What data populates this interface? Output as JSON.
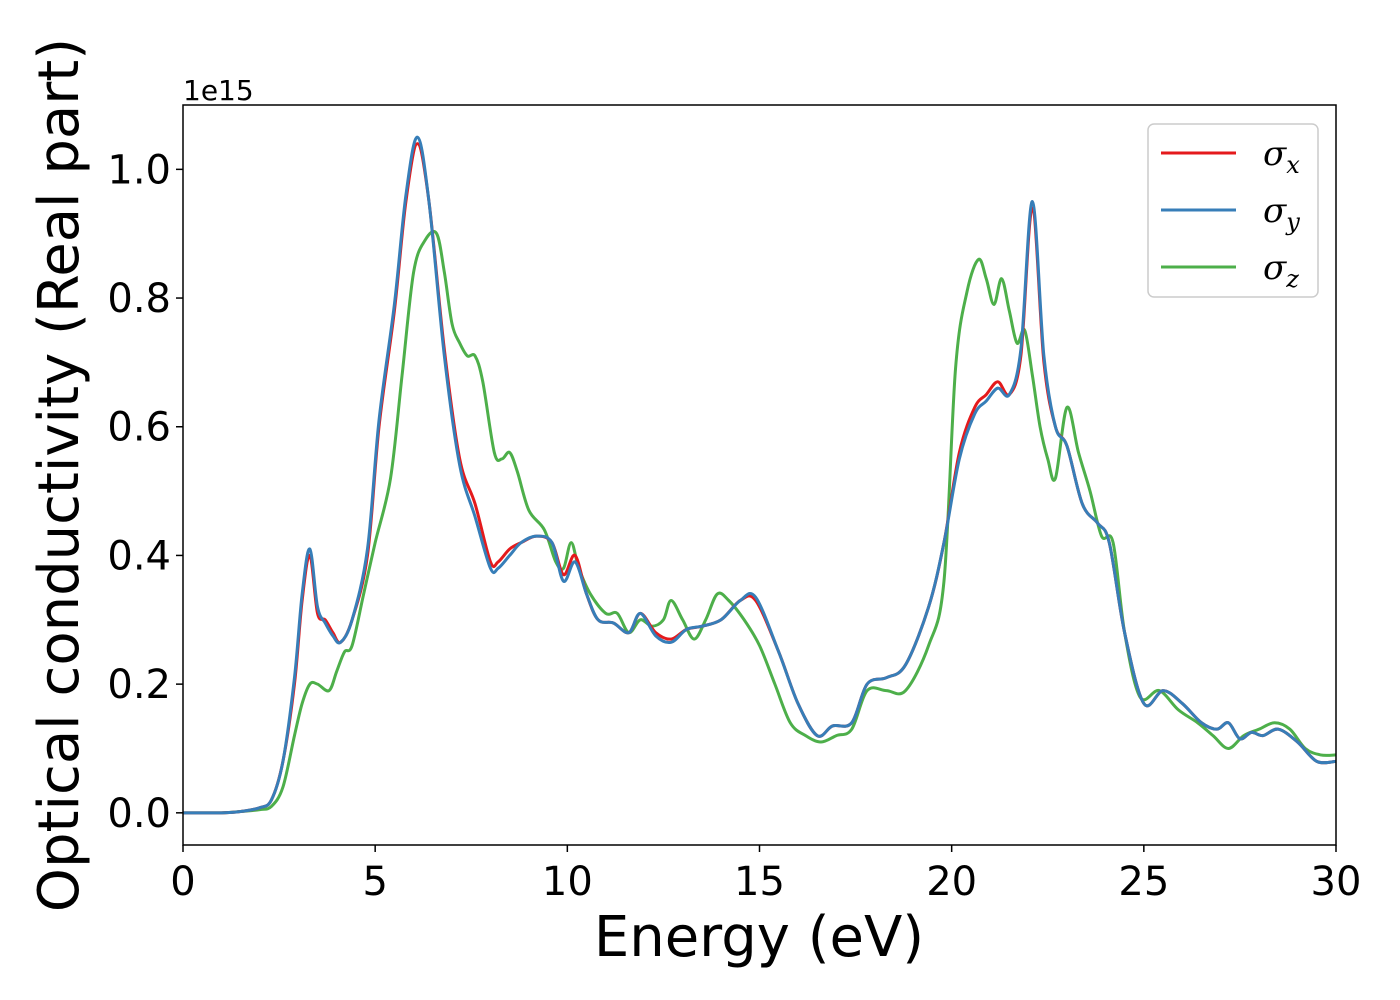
{
  "chart_data": {
    "type": "line",
    "xlabel": "Energy (eV)",
    "ylabel": "Optical conductivity (Real part)",
    "y_offset_text": "1e15",
    "xlim": [
      0,
      30
    ],
    "ylim": [
      -0.05,
      1.1
    ],
    "x_ticks": [
      0,
      5,
      10,
      15,
      20,
      25,
      30
    ],
    "x_tick_labels": [
      "0",
      "5",
      "10",
      "15",
      "20",
      "25",
      "30"
    ],
    "y_ticks": [
      0.0,
      0.2,
      0.4,
      0.6,
      0.8,
      1.0
    ],
    "y_tick_labels": [
      "0.0",
      "0.2",
      "0.4",
      "0.6",
      "0.8",
      "1.0"
    ],
    "legend_position": "upper-right",
    "series": [
      {
        "name": "σx",
        "symbol": "σ",
        "subscript": "x",
        "color": "#e41a1c",
        "x": [
          0,
          1,
          1.5,
          2,
          2.3,
          2.6,
          2.9,
          3.1,
          3.3,
          3.5,
          3.7,
          3.9,
          4.1,
          4.4,
          4.8,
          5.1,
          5.5,
          5.8,
          6.1,
          6.4,
          6.8,
          7.2,
          7.6,
          8.0,
          8.2,
          8.5,
          8.8,
          9.2,
          9.6,
          9.9,
          10.2,
          10.5,
          10.8,
          11.2,
          11.6,
          11.9,
          12.3,
          12.7,
          13.1,
          13.5,
          14.0,
          14.5,
          14.9,
          15.5,
          16.0,
          16.5,
          16.9,
          17.4,
          17.8,
          18.3,
          18.8,
          19.4,
          19.8,
          20.2,
          20.6,
          20.9,
          21.2,
          21.5,
          21.8,
          22.1,
          22.4,
          22.7,
          23.0,
          23.4,
          23.8,
          24.1,
          24.5,
          25.0,
          25.5,
          26.0,
          26.5,
          26.9,
          27.2,
          27.5,
          27.8,
          28.1,
          28.5,
          29.0,
          29.5,
          30.0
        ],
        "y": [
          0.0,
          0.0,
          0.002,
          0.008,
          0.02,
          0.08,
          0.2,
          0.33,
          0.4,
          0.31,
          0.3,
          0.28,
          0.265,
          0.3,
          0.4,
          0.6,
          0.78,
          0.95,
          1.04,
          0.95,
          0.72,
          0.55,
          0.48,
          0.39,
          0.39,
          0.41,
          0.42,
          0.43,
          0.42,
          0.37,
          0.4,
          0.34,
          0.3,
          0.295,
          0.28,
          0.31,
          0.28,
          0.27,
          0.285,
          0.29,
          0.3,
          0.33,
          0.33,
          0.25,
          0.17,
          0.12,
          0.135,
          0.14,
          0.2,
          0.21,
          0.23,
          0.32,
          0.42,
          0.56,
          0.63,
          0.65,
          0.67,
          0.65,
          0.71,
          0.94,
          0.7,
          0.6,
          0.57,
          0.48,
          0.45,
          0.42,
          0.28,
          0.17,
          0.19,
          0.17,
          0.14,
          0.13,
          0.14,
          0.115,
          0.125,
          0.12,
          0.13,
          0.11,
          0.08,
          0.08
        ]
      },
      {
        "name": "σy",
        "symbol": "σ",
        "subscript": "y",
        "color": "#377eb8",
        "x": [
          0,
          1,
          1.5,
          2,
          2.3,
          2.6,
          2.9,
          3.1,
          3.3,
          3.5,
          3.7,
          3.9,
          4.1,
          4.4,
          4.8,
          5.1,
          5.5,
          5.8,
          6.1,
          6.4,
          6.8,
          7.2,
          7.6,
          8.0,
          8.2,
          8.5,
          8.8,
          9.2,
          9.6,
          9.9,
          10.2,
          10.5,
          10.8,
          11.2,
          11.6,
          11.9,
          12.3,
          12.7,
          13.1,
          13.5,
          14.0,
          14.5,
          14.9,
          15.5,
          16.0,
          16.5,
          16.9,
          17.4,
          17.8,
          18.3,
          18.8,
          19.4,
          19.8,
          20.2,
          20.6,
          20.9,
          21.2,
          21.5,
          21.8,
          22.1,
          22.4,
          22.7,
          23.0,
          23.4,
          23.8,
          24.1,
          24.5,
          25.0,
          25.5,
          26.0,
          26.5,
          26.9,
          27.2,
          27.5,
          27.8,
          28.1,
          28.5,
          29.0,
          29.5,
          30.0
        ],
        "y": [
          0.0,
          0.0,
          0.002,
          0.008,
          0.02,
          0.08,
          0.21,
          0.34,
          0.41,
          0.32,
          0.295,
          0.275,
          0.265,
          0.3,
          0.41,
          0.61,
          0.79,
          0.96,
          1.05,
          0.95,
          0.71,
          0.54,
          0.46,
          0.38,
          0.38,
          0.4,
          0.42,
          0.43,
          0.42,
          0.36,
          0.39,
          0.34,
          0.3,
          0.295,
          0.28,
          0.31,
          0.275,
          0.265,
          0.285,
          0.29,
          0.3,
          0.33,
          0.335,
          0.25,
          0.17,
          0.12,
          0.135,
          0.14,
          0.2,
          0.21,
          0.23,
          0.32,
          0.42,
          0.55,
          0.62,
          0.64,
          0.66,
          0.65,
          0.72,
          0.95,
          0.71,
          0.6,
          0.57,
          0.48,
          0.45,
          0.42,
          0.28,
          0.17,
          0.19,
          0.17,
          0.14,
          0.13,
          0.14,
          0.115,
          0.125,
          0.12,
          0.13,
          0.11,
          0.08,
          0.08
        ]
      },
      {
        "name": "σz",
        "symbol": "σ",
        "subscript": "z",
        "color": "#4daf4a",
        "x": [
          0,
          1,
          1.5,
          2,
          2.3,
          2.6,
          2.9,
          3.1,
          3.3,
          3.5,
          3.8,
          4.0,
          4.2,
          4.4,
          4.7,
          5.0,
          5.4,
          5.7,
          6.0,
          6.3,
          6.6,
          6.8,
          7.0,
          7.2,
          7.4,
          7.6,
          7.8,
          8.1,
          8.3,
          8.5,
          8.7,
          9.0,
          9.4,
          9.7,
          9.9,
          10.1,
          10.3,
          10.6,
          11.0,
          11.3,
          11.6,
          11.9,
          12.2,
          12.5,
          12.7,
          13.0,
          13.3,
          13.6,
          13.9,
          14.2,
          14.6,
          15.0,
          15.4,
          15.8,
          16.2,
          16.6,
          17.0,
          17.4,
          17.8,
          18.3,
          18.8,
          19.4,
          19.8,
          20.1,
          20.4,
          20.7,
          20.9,
          21.1,
          21.3,
          21.5,
          21.7,
          21.9,
          22.1,
          22.3,
          22.5,
          22.7,
          23.0,
          23.3,
          23.6,
          23.9,
          24.2,
          24.5,
          24.9,
          25.4,
          25.9,
          26.4,
          26.8,
          27.2,
          27.6,
          28.0,
          28.4,
          28.8,
          29.2,
          29.6,
          30.0
        ],
        "y": [
          0.0,
          0.0,
          0.002,
          0.005,
          0.01,
          0.04,
          0.12,
          0.17,
          0.2,
          0.2,
          0.19,
          0.22,
          0.25,
          0.26,
          0.34,
          0.42,
          0.52,
          0.68,
          0.84,
          0.89,
          0.9,
          0.84,
          0.76,
          0.73,
          0.71,
          0.71,
          0.67,
          0.56,
          0.55,
          0.56,
          0.53,
          0.47,
          0.44,
          0.39,
          0.38,
          0.42,
          0.38,
          0.34,
          0.31,
          0.31,
          0.28,
          0.3,
          0.29,
          0.3,
          0.33,
          0.3,
          0.27,
          0.3,
          0.34,
          0.33,
          0.3,
          0.26,
          0.2,
          0.14,
          0.12,
          0.11,
          0.12,
          0.13,
          0.19,
          0.19,
          0.19,
          0.26,
          0.36,
          0.69,
          0.81,
          0.86,
          0.83,
          0.79,
          0.83,
          0.78,
          0.73,
          0.75,
          0.68,
          0.6,
          0.55,
          0.52,
          0.63,
          0.56,
          0.5,
          0.43,
          0.42,
          0.28,
          0.18,
          0.19,
          0.16,
          0.14,
          0.12,
          0.1,
          0.12,
          0.13,
          0.14,
          0.13,
          0.1,
          0.09,
          0.09
        ]
      }
    ]
  }
}
